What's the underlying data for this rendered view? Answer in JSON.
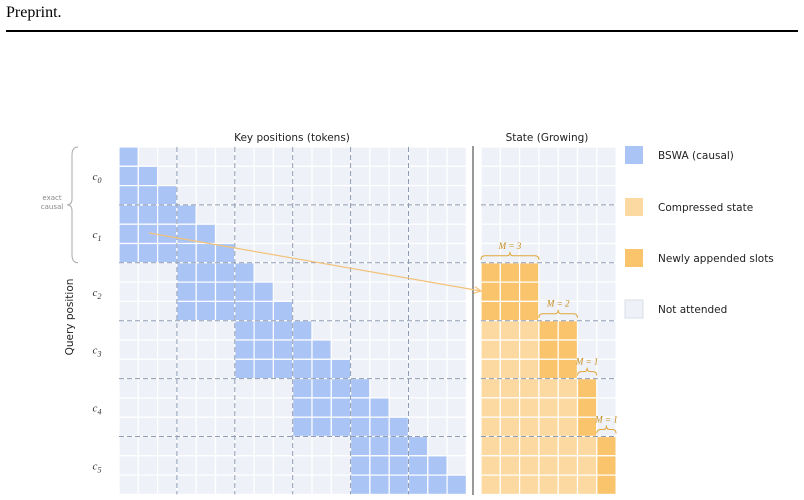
{
  "header": {
    "text": "Preprint."
  },
  "figure": {
    "key_title": "Key positions (tokens)",
    "state_title": "State (Growing)",
    "y_axis_label": "Query position",
    "exact_causal_label": "exact\ncausal",
    "chunk_labels": [
      "c0",
      "c1",
      "c2",
      "c3",
      "c4",
      "c5"
    ],
    "m_labels": [
      "M = 3",
      "M = 2",
      "M = 1",
      "M = 1"
    ],
    "legend": [
      {
        "label": "BSWA (causal)",
        "color": "#a9c4f5"
      },
      {
        "label": "Compressed state",
        "color": "#fcd9a0"
      },
      {
        "label": "Newly appended slots",
        "color": "#f9c46b"
      },
      {
        "label": "Not attended",
        "color": "#eef2f8"
      }
    ],
    "colors": {
      "bswa": "#a9c4f5",
      "compressed": "#fcd9a0",
      "appended": "#f9c46b",
      "empty": "#eef2f8",
      "arrow": "#f3c27a"
    }
  }
}
